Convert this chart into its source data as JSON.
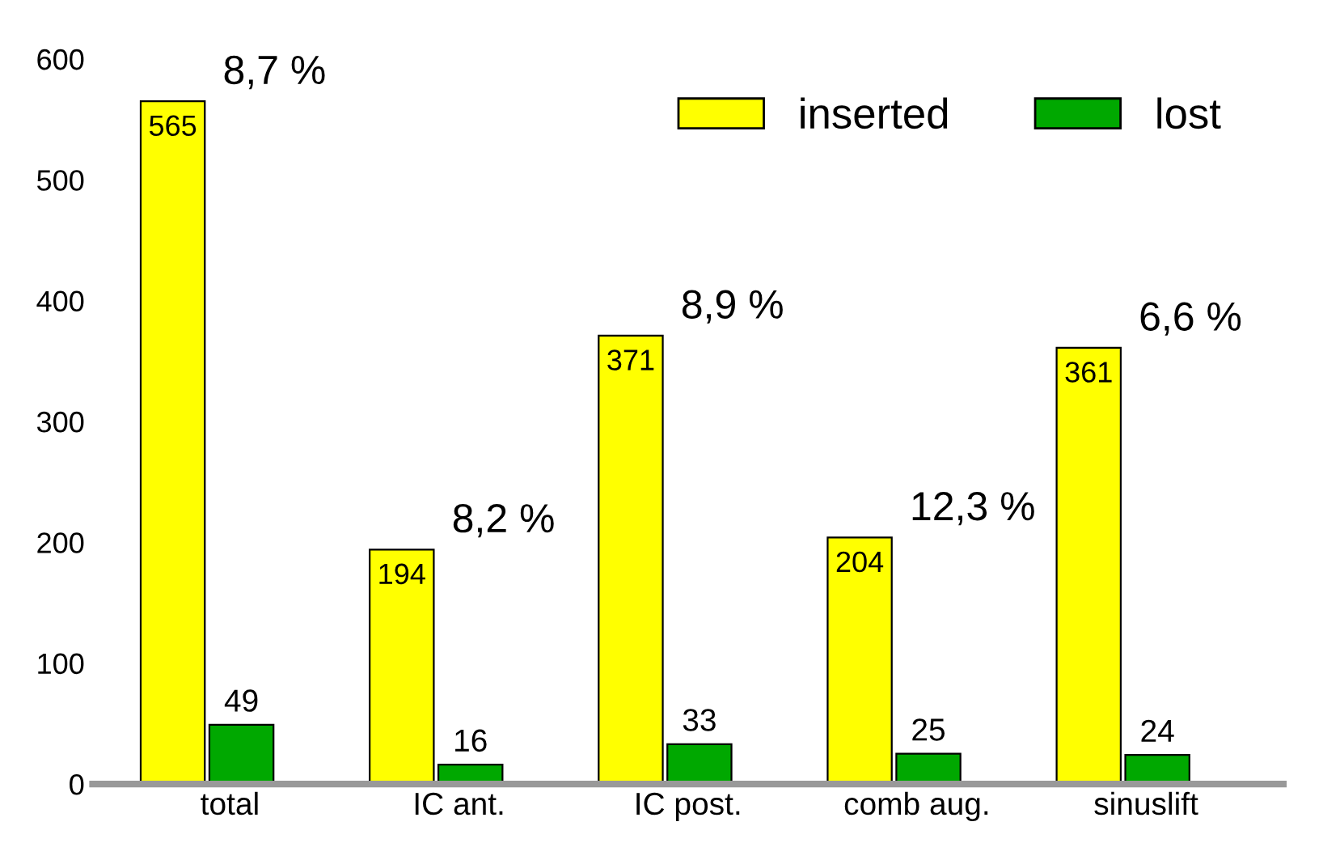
{
  "chart_data": {
    "type": "bar",
    "categories": [
      "total",
      "IC ant.",
      "IC post.",
      "comb aug.",
      "sinuslift"
    ],
    "series": [
      {
        "name": "inserted",
        "color": "#ffff00",
        "values": [
          565,
          194,
          371,
          204,
          361
        ]
      },
      {
        "name": "lost",
        "color": "#00a800",
        "values": [
          49,
          16,
          33,
          25,
          24
        ]
      }
    ],
    "ylim": [
      0,
      600
    ],
    "yticks": [
      0,
      100,
      200,
      300,
      400,
      500,
      600
    ],
    "data_labels": true,
    "legend": "top right",
    "grid": false,
    "annotations": [
      "8,7 %",
      "8,2 %",
      "8,9 %",
      "12,3 %",
      "6,6 %"
    ]
  }
}
